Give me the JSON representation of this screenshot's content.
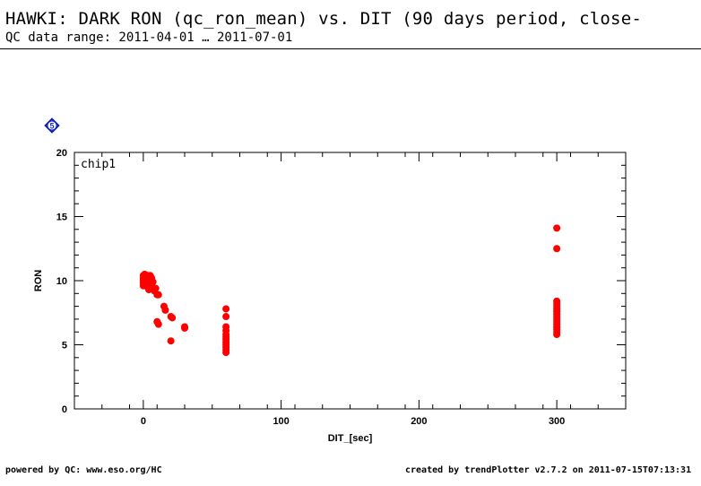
{
  "header": {
    "title": "HAWKI: DARK RON (qc_ron_mean) vs. DIT (90 days period, close-",
    "subtitle": "QC data range: 2011-04-01 … 2011-07-01"
  },
  "footer": {
    "left": "powered by QC: www.eso.org/HC",
    "right": "created by trendPlotter v2.7.2 on 2011-07-15T07:13:31"
  },
  "badge": {
    "label": "5",
    "color": "#1a2ecf"
  },
  "chart_data": {
    "type": "scatter",
    "panel_label": "chip1",
    "xlabel": "DIT_[sec]",
    "ylabel": "RON",
    "xlim": [
      -50,
      350
    ],
    "ylim": [
      0,
      20
    ],
    "x_ticks": [
      0,
      100,
      200,
      300
    ],
    "y_ticks": [
      0,
      5,
      10,
      15,
      20
    ],
    "marker_color": "#ff0000",
    "points": [
      [
        0,
        9.6
      ],
      [
        0,
        9.8
      ],
      [
        0,
        10.0
      ],
      [
        0,
        10.2
      ],
      [
        0,
        10.4
      ],
      [
        1,
        10.5
      ],
      [
        1,
        9.9
      ],
      [
        2,
        10.3
      ],
      [
        2,
        9.7
      ],
      [
        2,
        10.1
      ],
      [
        3,
        9.5
      ],
      [
        3,
        10.4
      ],
      [
        4,
        9.3
      ],
      [
        4,
        10.0
      ],
      [
        5,
        10.4
      ],
      [
        5,
        9.8
      ],
      [
        6,
        10.2
      ],
      [
        6,
        9.6
      ],
      [
        7,
        9.9
      ],
      [
        8,
        9.4
      ],
      [
        8,
        9.2
      ],
      [
        9,
        9.4
      ],
      [
        10,
        8.9
      ],
      [
        10,
        6.8
      ],
      [
        11,
        8.9
      ],
      [
        11,
        6.6
      ],
      [
        15,
        8.0
      ],
      [
        16,
        7.7
      ],
      [
        20,
        7.2
      ],
      [
        21,
        7.1
      ],
      [
        20,
        5.3
      ],
      [
        30,
        6.4
      ],
      [
        30,
        6.3
      ],
      [
        60,
        7.8
      ],
      [
        60,
        7.2
      ],
      [
        60,
        6.4
      ],
      [
        60,
        6.1
      ],
      [
        60,
        5.8
      ],
      [
        60,
        5.6
      ],
      [
        60,
        5.4
      ],
      [
        60,
        5.2
      ],
      [
        60,
        5.0
      ],
      [
        60,
        4.8
      ],
      [
        60,
        4.6
      ],
      [
        60,
        4.4
      ],
      [
        300,
        14.1
      ],
      [
        300,
        12.5
      ],
      [
        300,
        8.4
      ],
      [
        300,
        8.2
      ],
      [
        300,
        8.0
      ],
      [
        300,
        7.8
      ],
      [
        300,
        7.6
      ],
      [
        300,
        7.4
      ],
      [
        300,
        7.2
      ],
      [
        300,
        7.0
      ],
      [
        300,
        6.8
      ],
      [
        300,
        6.6
      ],
      [
        300,
        6.4
      ],
      [
        300,
        6.2
      ],
      [
        300,
        6.0
      ],
      [
        300,
        5.8
      ]
    ]
  }
}
